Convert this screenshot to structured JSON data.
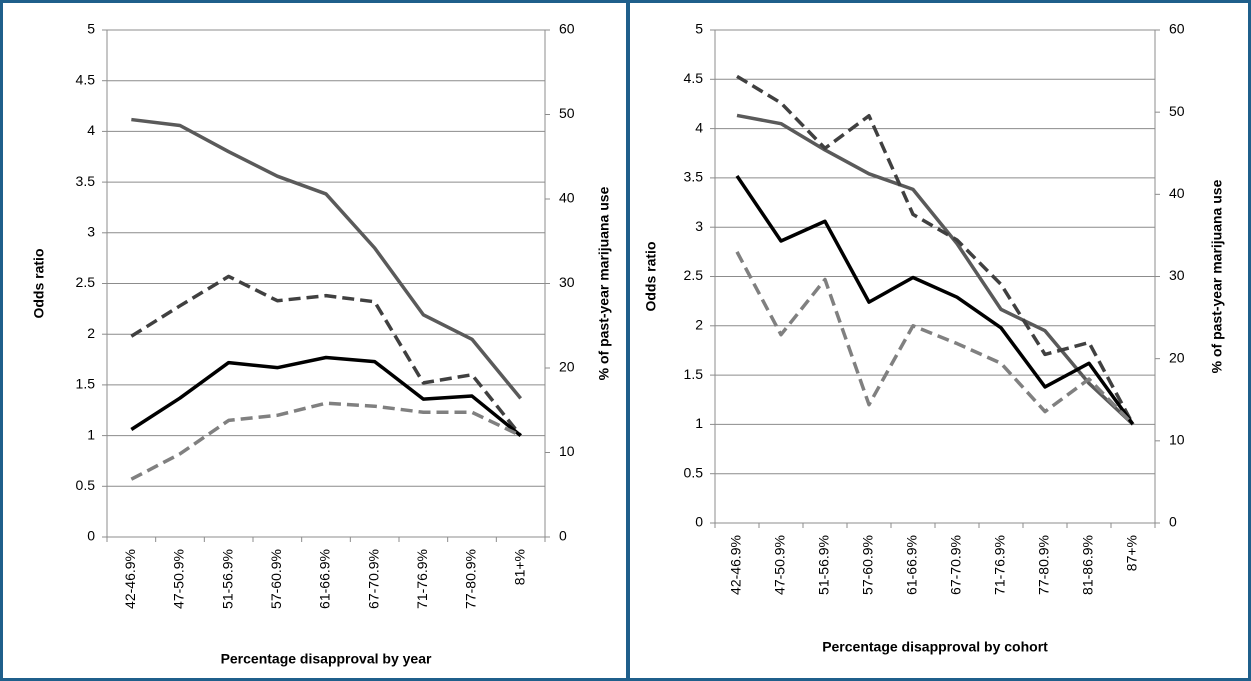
{
  "chart_data": [
    {
      "type": "line",
      "ylabel": "Odds ratio",
      "y2label": "% of past-year marijuana use",
      "xlabel": "Percentage disapproval  by year",
      "categories": [
        "42-46.9%",
        "47-50.9%",
        "51-56.9%",
        "57-60.9%",
        "61-66.9%",
        "67-70.9%",
        "71-76.9%",
        "77-80.9%",
        "81+%"
      ],
      "ylim": [
        0,
        5
      ],
      "yticks": [
        0,
        0.5,
        1,
        1.5,
        2,
        2.5,
        3,
        3.5,
        4,
        4.5,
        5
      ],
      "y2lim": [
        0,
        60
      ],
      "y2ticks": [
        0,
        10,
        20,
        30,
        40,
        50,
        60
      ],
      "grid": true,
      "series": [
        {
          "color": "#5a5a5a",
          "dash": false,
          "axis": "y2",
          "values": [
            49.4,
            48.7,
            45.6,
            42.7,
            40.6,
            34.2,
            26.3,
            23.4,
            16.4
          ]
        },
        {
          "color": "#404040",
          "dash": true,
          "values": [
            1.98,
            2.28,
            2.57,
            2.33,
            2.38,
            2.32,
            1.52,
            1.6,
            1.0
          ]
        },
        {
          "color": "#000000",
          "dash": false,
          "values": [
            1.06,
            1.37,
            1.72,
            1.67,
            1.77,
            1.73,
            1.36,
            1.39,
            1.0
          ]
        },
        {
          "color": "#808080",
          "dash": true,
          "values": [
            0.57,
            0.82,
            1.15,
            1.2,
            1.32,
            1.29,
            1.23,
            1.23,
            1.0
          ]
        }
      ]
    },
    {
      "type": "line",
      "ylabel": "Odds ratio",
      "y2label": "% of past-year marijuana use",
      "xlabel": "Percentage disapproval  by cohort",
      "categories": [
        "42-46.9%",
        "47-50.9%",
        "51-56.9%",
        "57-60.9%",
        "61-66.9%",
        "67-70.9%",
        "71-76.9%",
        "77-80.9%",
        "81-86.9%",
        "87+%"
      ],
      "ylim": [
        0,
        5
      ],
      "yticks": [
        0,
        0.5,
        1,
        1.5,
        2,
        2.5,
        3,
        3.5,
        4,
        4.5,
        5
      ],
      "y2lim": [
        0,
        60
      ],
      "y2ticks": [
        0,
        10,
        20,
        30,
        40,
        50,
        60
      ],
      "grid": true,
      "series": [
        {
          "color": "#5a5a5a",
          "dash": false,
          "axis": "y2",
          "values": [
            49.6,
            48.6,
            45.4,
            42.5,
            40.6,
            34.0,
            26.0,
            23.4,
            17.0,
            12.0
          ]
        },
        {
          "color": "#404040",
          "dash": true,
          "values": [
            4.53,
            4.26,
            3.8,
            4.13,
            3.13,
            2.87,
            2.42,
            1.71,
            1.83,
            1.0
          ]
        },
        {
          "color": "#000000",
          "dash": false,
          "values": [
            3.52,
            2.86,
            3.06,
            2.24,
            2.49,
            2.29,
            1.98,
            1.38,
            1.62,
            1.0
          ]
        },
        {
          "color": "#808080",
          "dash": true,
          "values": [
            2.75,
            1.91,
            2.47,
            1.2,
            2.0,
            1.82,
            1.62,
            1.13,
            1.46,
            1.0
          ]
        }
      ]
    }
  ]
}
